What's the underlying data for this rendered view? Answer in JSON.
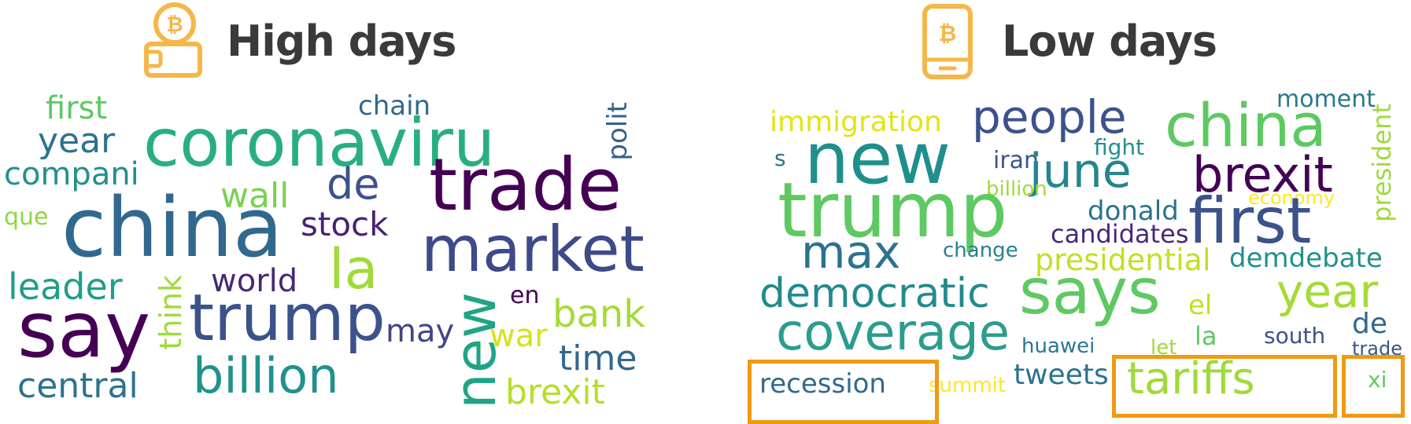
{
  "left_panel": {
    "title": "High days",
    "icon": "bitcoin-wallet-icon",
    "words": {
      "coronaviru": "coronaviru",
      "china": "china",
      "trade": "trade",
      "market": "market",
      "say": "say",
      "trump": "trump",
      "billion": "billion",
      "new": "new",
      "de": "de",
      "la": "la",
      "stock": "stock",
      "year": "year",
      "first": "first",
      "compani": "compani",
      "leader": "leader",
      "central": "central",
      "wall": "wall",
      "world": "world",
      "chain": "chain",
      "polit": "polit",
      "bank": "bank",
      "time": "time",
      "brexit": "brexit",
      "war": "war",
      "may": "may",
      "en": "en",
      "que": "que",
      "think": "think"
    }
  },
  "right_panel": {
    "title": "Low days",
    "icon": "bitcoin-phone-icon",
    "words": {
      "new": "new",
      "trump": "trump",
      "china": "china",
      "people": "people",
      "brexit": "brexit",
      "first": "first",
      "says": "says",
      "coverage": "coverage",
      "democratic": "democratic",
      "june": "june",
      "year": "year",
      "max": "max",
      "immigration": "immigration",
      "presidential": "presidential",
      "candidates": "candidates",
      "donald": "donald",
      "president": "president",
      "moment": "moment",
      "fight": "fight",
      "iran": "iran",
      "billion": "billion",
      "economy": "economy",
      "s": "s",
      "change": "change",
      "demdebate": "demdebate",
      "el": "el",
      "de": "de",
      "la": "la",
      "south": "south",
      "let": "let",
      "trade": "trade",
      "huawei": "huawei",
      "tweets": "tweets",
      "summit": "summit",
      "recession": "recession",
      "tariffs": "tariffs",
      "xi": "xi"
    }
  },
  "colors": {
    "highlight_border": "#f09a14",
    "icon": "#f5b74a",
    "title": "#3a3a3a"
  }
}
